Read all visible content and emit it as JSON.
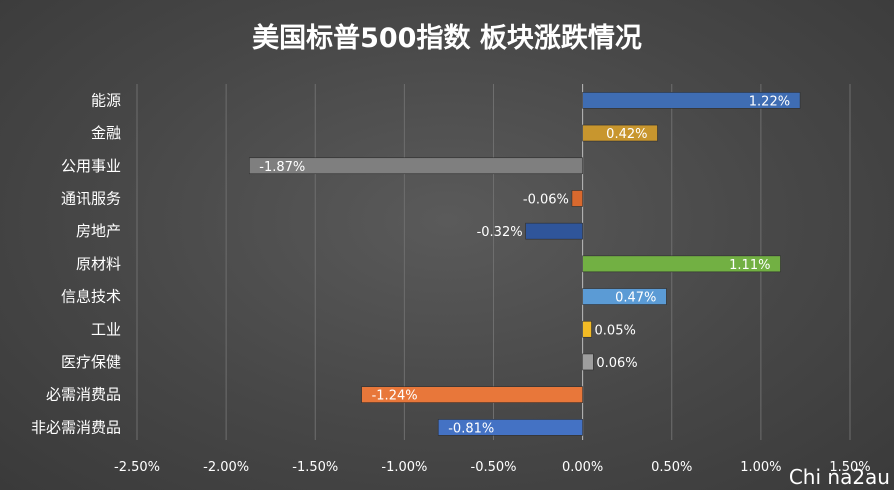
{
  "chart_data": {
    "type": "bar",
    "orientation": "horizontal",
    "title": "美国标普500指数 板块涨跌情况",
    "categories": [
      "能源",
      "金融",
      "公用事业",
      "通讯服务",
      "房地产",
      "原材料",
      "信息技术",
      "工业",
      "医疗保健",
      "必需消费品",
      "非必需消费品"
    ],
    "values": [
      1.22,
      0.42,
      -1.87,
      -0.06,
      -0.32,
      1.11,
      0.47,
      0.05,
      0.06,
      -1.24,
      -0.81
    ],
    "data_labels": [
      "1.22%",
      "0.42%",
      "-1.87%",
      "-0.06%",
      "-0.32%",
      "1.11%",
      "0.47%",
      "0.05%",
      "0.06%",
      "-1.24%",
      "-0.81%"
    ],
    "bar_colors": [
      "#3f6db3",
      "#c8962e",
      "#7f7f7f",
      "#d9692e",
      "#2f559a",
      "#72b043",
      "#5b9bd5",
      "#f3bb25",
      "#9e9e9e",
      "#e8773a",
      "#4472c4"
    ],
    "xlim": [
      -2.5,
      1.5
    ],
    "xticks": [
      -2.5,
      -2.0,
      -1.5,
      -1.0,
      -0.5,
      0.0,
      0.5,
      1.0,
      1.5
    ],
    "xtick_labels": [
      "-2.50%",
      "-2.00%",
      "-1.50%",
      "-1.00%",
      "-0.50%",
      "0.00%",
      "0.50%",
      "1.00%",
      "1.50%"
    ],
    "xlabel": "",
    "ylabel": "",
    "grid": "vertical",
    "legend": "none"
  },
  "watermark": "Chi na2au"
}
